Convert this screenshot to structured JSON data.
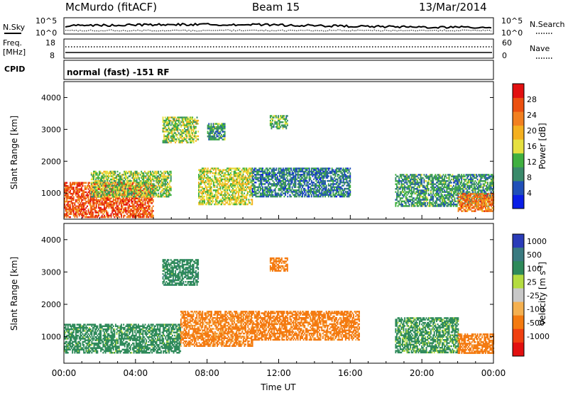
{
  "header": {
    "station": "McMurdo (fitACF)",
    "beam": "Beam 15",
    "date": "13/Mar/2014"
  },
  "noise_panel": {
    "left_label": "N.Sky",
    "right_label": "N.Search",
    "left_ticks": [
      "10^5",
      "10^0"
    ],
    "right_ticks": [
      "10^5",
      "10^0"
    ]
  },
  "freq_panel": {
    "label_line1": "Freq.",
    "label_line2": "[MHz]",
    "left_ticks": [
      "18",
      "8"
    ],
    "right_ticks": [
      "60",
      "0"
    ],
    "right_label": "Nave"
  },
  "cpid_panel": {
    "label": "CPID",
    "mode": "normal (fast) -151 RF"
  },
  "x_axis": {
    "title": "Time UT",
    "ticks": [
      "00:00",
      "04:00",
      "08:00",
      "12:00",
      "16:00",
      "20:00",
      "00:00"
    ]
  },
  "colors": {
    "power_scale": [
      "#0a1ee6",
      "#2050b8",
      "#3a8a6a",
      "#40b040",
      "#e6e040",
      "#f4b020",
      "#f28020",
      "#ec5010",
      "#e21010"
    ],
    "velocity_scale": [
      "#e21010",
      "#f04010",
      "#f47a10",
      "#f4b050",
      "#c8c8c8",
      "#b4dc40",
      "#2e8a5a",
      "#3a7a80",
      "#2a3cb8"
    ]
  },
  "chart_data": [
    {
      "type": "heatmap",
      "title": "",
      "parameter": "Power",
      "ylabel": "Slant Range [km]",
      "xlabel": "Time UT",
      "xlim": [
        "00:00",
        "24:00"
      ],
      "ylim": [
        180,
        4500
      ],
      "yticks": [
        1000,
        2000,
        3000,
        4000
      ],
      "colorbar": {
        "label": "Power [dB]",
        "range": [
          0,
          32
        ],
        "ticks": [
          4,
          8,
          12,
          16,
          20,
          24,
          28
        ]
      },
      "regions": [
        {
          "t_start": 0.0,
          "t_end": 5.0,
          "r_start": 250,
          "r_end": 1350,
          "value": 26
        },
        {
          "t_start": 1.5,
          "t_end": 6.0,
          "r_start": 900,
          "r_end": 1700,
          "value": 14
        },
        {
          "t_start": 5.5,
          "t_end": 7.5,
          "r_start": 2600,
          "r_end": 3400,
          "value": 14
        },
        {
          "t_start": 7.5,
          "t_end": 10.5,
          "r_start": 650,
          "r_end": 1800,
          "value": 16
        },
        {
          "t_start": 8.0,
          "t_end": 9.0,
          "r_start": 2700,
          "r_end": 3200,
          "value": 10
        },
        {
          "t_start": 11.5,
          "t_end": 12.5,
          "r_start": 3050,
          "r_end": 3450,
          "value": 12
        },
        {
          "t_start": 10.5,
          "t_end": 16.0,
          "r_start": 900,
          "r_end": 1800,
          "value": 8
        },
        {
          "t_start": 18.5,
          "t_end": 24.0,
          "r_start": 600,
          "r_end": 1600,
          "value": 10
        },
        {
          "t_start": 22.0,
          "t_end": 24.0,
          "r_start": 450,
          "r_end": 1000,
          "value": 24
        }
      ]
    },
    {
      "type": "heatmap",
      "title": "",
      "parameter": "Velocity",
      "ylabel": "Slant Range [km]",
      "xlabel": "Time UT",
      "xlim": [
        "00:00",
        "24:00"
      ],
      "ylim": [
        180,
        4500
      ],
      "yticks": [
        1000,
        2000,
        3000,
        4000
      ],
      "colorbar": {
        "label": "Velocity [m s^-1]",
        "ticks": [
          1000,
          500,
          100,
          25,
          -25,
          -100,
          -500,
          -1000
        ]
      },
      "regions": [
        {
          "t_start": 0.0,
          "t_end": 6.5,
          "r_start": 500,
          "r_end": 1400,
          "value": 200
        },
        {
          "t_start": 6.5,
          "t_end": 10.5,
          "r_start": 700,
          "r_end": 1800,
          "value": -150
        },
        {
          "t_start": 5.5,
          "t_end": 7.5,
          "r_start": 2600,
          "r_end": 3400,
          "value": 300
        },
        {
          "t_start": 11.5,
          "t_end": 12.5,
          "r_start": 3050,
          "r_end": 3450,
          "value": -200
        },
        {
          "t_start": 10.5,
          "t_end": 16.5,
          "r_start": 900,
          "r_end": 1800,
          "value": -200
        },
        {
          "t_start": 18.5,
          "t_end": 22.0,
          "r_start": 500,
          "r_end": 1600,
          "value": 150
        },
        {
          "t_start": 22.0,
          "t_end": 24.0,
          "r_start": 500,
          "r_end": 1100,
          "value": -200
        }
      ]
    }
  ]
}
